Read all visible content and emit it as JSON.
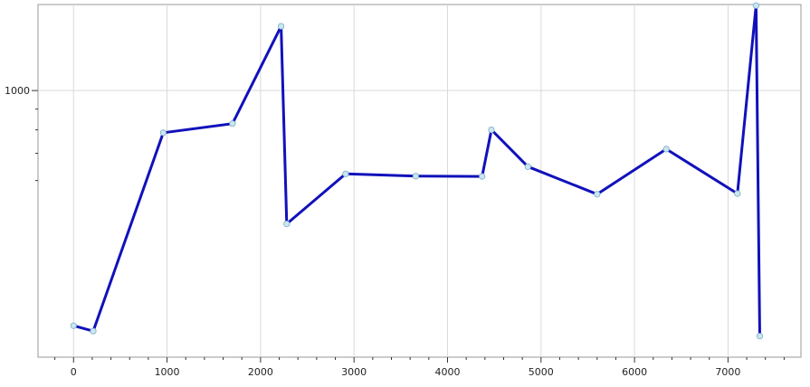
{
  "chart_data": {
    "type": "line",
    "title": "",
    "xlabel": "",
    "ylabel": "",
    "y_scale": "log",
    "grid": true,
    "xlim": [
      -380,
      7780
    ],
    "ylim": [
      220,
      1630
    ],
    "x_ticks": [
      0,
      1000,
      2000,
      3000,
      4000,
      5000,
      6000,
      7000
    ],
    "x_tick_labels": [
      "0",
      "1000",
      "2000",
      "3000",
      "4000",
      "5000",
      "6000",
      "7000"
    ],
    "y_ticks": [
      1000
    ],
    "y_tick_labels": [
      "1000"
    ],
    "x_minor_step": 200,
    "y_minor_ticks": [
      600,
      700,
      800,
      900
    ],
    "series": [
      {
        "color": "#1111bb",
        "marker_color": "#c8e8f0",
        "x": [
          0,
          210,
          960,
          1700,
          2220,
          2280,
          2910,
          3660,
          4370,
          4470,
          4860,
          5600,
          6340,
          7100,
          7300,
          7340
        ],
        "y": [
          263,
          255,
          787,
          829,
          1440,
          469,
          623,
          615,
          614,
          800,
          649,
          555,
          717,
          557,
          1620,
          248
        ]
      }
    ]
  }
}
